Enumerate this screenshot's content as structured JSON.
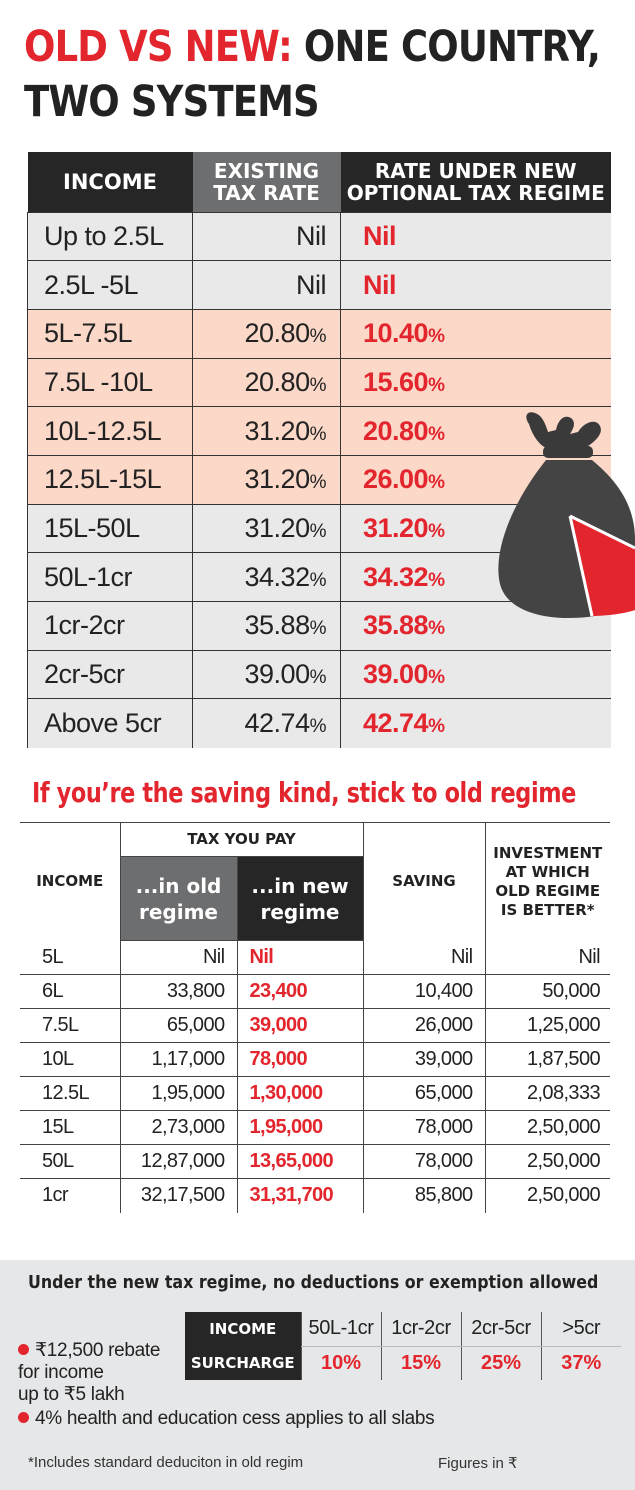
{
  "title": {
    "part_red": "OLD VS NEW:",
    "part_dark": "ONE COUNTRY,",
    "line2": "TWO SYSTEMS"
  },
  "table1": {
    "headers": {
      "income": "INCOME",
      "existing_l1": "EXISTING",
      "existing_l2": "TAX RATE",
      "new_l1": "RATE UNDER NEW",
      "new_l2": "OPTIONAL TAX REGIME"
    },
    "rows": [
      {
        "income": "Up to 2.5L",
        "existing": "Nil",
        "existing_pct": "",
        "new": "Nil",
        "new_pct": ""
      },
      {
        "income": "2.5L -5L",
        "existing": "Nil",
        "existing_pct": "",
        "new": "Nil",
        "new_pct": ""
      },
      {
        "income": "5L-7.5L",
        "existing": "20.80",
        "existing_pct": "%",
        "new": "10.40",
        "new_pct": "%"
      },
      {
        "income": "7.5L -10L",
        "existing": "20.80",
        "existing_pct": "%",
        "new": "15.60",
        "new_pct": "%"
      },
      {
        "income": "10L-12.5L",
        "existing": "31.20",
        "existing_pct": "%",
        "new": "20.80",
        "new_pct": "%"
      },
      {
        "income": "12.5L-15L",
        "existing": "31.20",
        "existing_pct": "%",
        "new": "26.00",
        "new_pct": "%"
      },
      {
        "income": "15L-50L",
        "existing": "31.20",
        "existing_pct": "%",
        "new": "31.20",
        "new_pct": "%"
      },
      {
        "income": "50L-1cr",
        "existing": "34.32",
        "existing_pct": "%",
        "new": "34.32",
        "new_pct": "%"
      },
      {
        "income": "1cr-2cr",
        "existing": "35.88",
        "existing_pct": "%",
        "new": "35.88",
        "new_pct": "%"
      },
      {
        "income": "2cr-5cr",
        "existing": "39.00",
        "existing_pct": "%",
        "new": "39.00",
        "new_pct": "%"
      },
      {
        "income": "Above 5cr",
        "existing": "42.74",
        "existing_pct": "%",
        "new": "42.74",
        "new_pct": "%"
      }
    ]
  },
  "section2": {
    "heading": "If you’re the saving kind, stick to old regime",
    "headers": {
      "income": "INCOME",
      "tax_you_pay": "TAX YOU PAY",
      "old_l1": "...in old",
      "old_l2": "regime",
      "new_l1": "...in new",
      "new_l2": "regime",
      "saving": "SAVING",
      "inv_l1": "INVESTMENT",
      "inv_l2": "AT WHICH",
      "inv_l3": "OLD REGIME",
      "inv_l4": "IS BETTER*"
    },
    "rows": [
      {
        "income": "5L",
        "old": "Nil",
        "new": "Nil",
        "saving": "Nil",
        "investment": "Nil"
      },
      {
        "income": "6L",
        "old": "33,800",
        "new": "23,400",
        "saving": "10,400",
        "investment": "50,000"
      },
      {
        "income": "7.5L",
        "old": "65,000",
        "new": "39,000",
        "saving": "26,000",
        "investment": "1,25,000"
      },
      {
        "income": "10L",
        "old": "1,17,000",
        "new": "78,000",
        "saving": "39,000",
        "investment": "1,87,500"
      },
      {
        "income": "12.5L",
        "old": "1,95,000",
        "new": "1,30,000",
        "saving": "65,000",
        "investment": "2,08,333"
      },
      {
        "income": "15L",
        "old": "2,73,000",
        "new": "1,95,000",
        "saving": "78,000",
        "investment": "2,50,000"
      },
      {
        "income": "50L",
        "old": "12,87,000",
        "new": "13,65,000",
        "saving": "78,000",
        "investment": "2,50,000"
      },
      {
        "income": "1cr",
        "old": "32,17,500",
        "new": "31,31,700",
        "saving": "85,800",
        "investment": "2,50,000"
      }
    ]
  },
  "panel": {
    "title": "Under the new tax regime, no deductions or exemption allowed",
    "note1_l1": "₹12,500 rebate",
    "note1_l2": "for income",
    "note1_l3": "up to ₹5 lakh",
    "note2": "4% health and education cess applies to all slabs",
    "surcharge": {
      "income_label": "INCOME",
      "surcharge_label": "SURCHARGE",
      "slabs": [
        "50L-1cr",
        "1cr-2cr",
        "2cr-5cr",
        ">5cr"
      ],
      "rates": [
        "10%",
        "15%",
        "25%",
        "37%"
      ]
    },
    "footnote": "*Includes standard deduciton in old regim",
    "figures": "Figures in ₹"
  },
  "colors": {
    "accent_red": "#e3262e",
    "header_dark": "#262626",
    "header_grey": "#6d6e70",
    "row_grey": "#e9e9ea",
    "row_peach": "#fbd8c8",
    "panel_bg": "#e6e7e8"
  },
  "icons": [
    "money-bag-icon"
  ]
}
